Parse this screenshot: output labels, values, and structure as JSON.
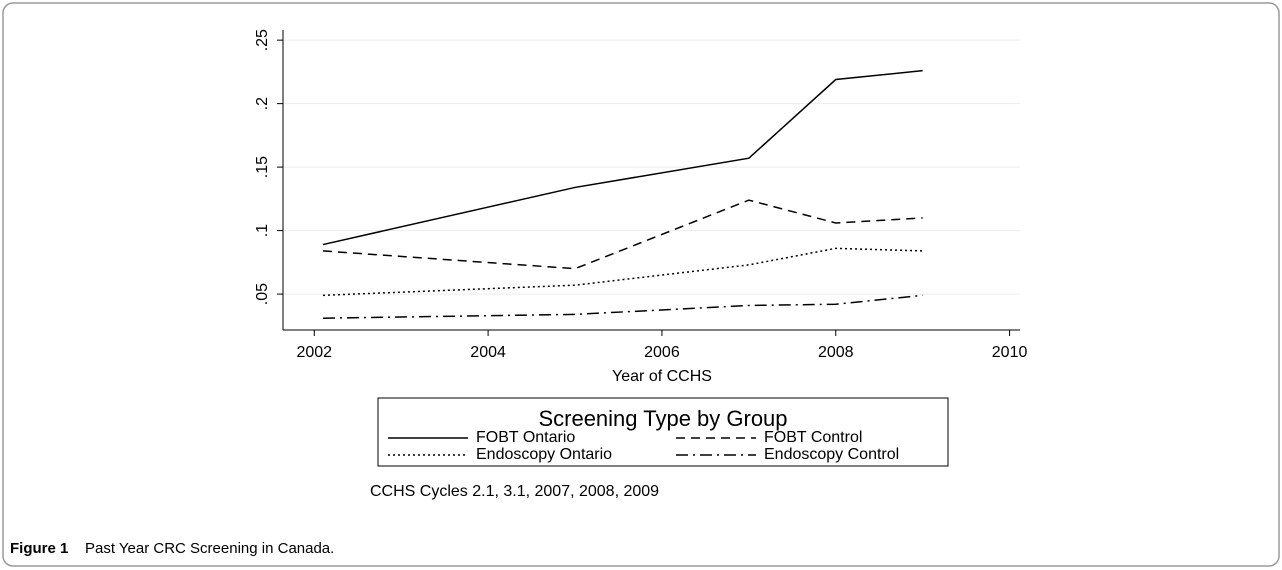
{
  "chart_data": {
    "type": "line",
    "xlabel": "Year of CCHS",
    "legend_title": "Screening Type by Group",
    "note": "CCHS Cycles 2.1, 3.1, 2007, 2008, 2009",
    "caption_label": "Figure 1",
    "caption": "Past Year CRC Screening in Canada.",
    "x": [
      2002.1,
      2005,
      2007,
      2008,
      2009
    ],
    "series": [
      {
        "name": "FOBT Ontario",
        "color": "#000000",
        "dash": "solid",
        "values": [
          0.089,
          0.134,
          0.157,
          0.219,
          0.226
        ]
      },
      {
        "name": "FOBT Control",
        "color": "#000000",
        "dash": "dashed",
        "values": [
          0.084,
          0.07,
          0.124,
          0.106,
          0.11
        ]
      },
      {
        "name": "Endoscopy Ontario",
        "color": "#000000",
        "dash": "dotted",
        "values": [
          0.049,
          0.057,
          0.073,
          0.086,
          0.084
        ]
      },
      {
        "name": "Endoscopy Control",
        "color": "#000000",
        "dash": "dashdot",
        "values": [
          0.031,
          0.034,
          0.041,
          0.042,
          0.049
        ]
      }
    ],
    "xlim": [
      2001.64,
      2010.12
    ],
    "xticks": [
      2002,
      2004,
      2006,
      2008,
      2010
    ],
    "ylim": [
      0.0217,
      0.258
    ],
    "yticks": [
      {
        "value": 0.05,
        "label": ".05"
      },
      {
        "value": 0.1,
        "label": ".1"
      },
      {
        "value": 0.15,
        "label": ".15"
      },
      {
        "value": 0.2,
        "label": ".2"
      },
      {
        "value": 0.25,
        "label": ".25"
      }
    ],
    "grid": true
  }
}
